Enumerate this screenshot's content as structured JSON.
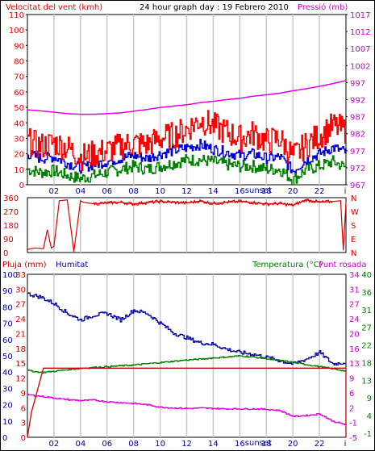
{
  "chart_data": [
    {
      "type": "line",
      "title": "24 hour graph day : 19 Febrero 2010",
      "left_axis_label": "Velocitat del vent (kmh)",
      "right_axis_label": "Pressió (mb)",
      "left_ticks": [
        "0",
        "10",
        "20",
        "30",
        "40",
        "50",
        "60",
        "70",
        "80",
        "90",
        "100",
        "110"
      ],
      "right_ticks": [
        "967",
        "972",
        "977",
        "982",
        "987",
        "992",
        "997",
        "1002",
        "1007",
        "1012",
        "1017"
      ],
      "ylim": [
        0,
        110
      ],
      "right_ylim": [
        967,
        1017
      ],
      "series": [
        {
          "name": "Pressió",
          "color": "#e000e0",
          "x": [
            0,
            1,
            2,
            3,
            4,
            5,
            6,
            7,
            8,
            9,
            10,
            11,
            12,
            13,
            14,
            15,
            16,
            17,
            18,
            19,
            20,
            21,
            22,
            23,
            24
          ],
          "values": [
            989.0,
            988.7,
            988.3,
            987.9,
            987.7,
            987.7,
            987.9,
            988.1,
            988.6,
            989.1,
            989.7,
            990.1,
            990.5,
            991.1,
            991.5,
            992.0,
            992.4,
            993.0,
            993.4,
            993.9,
            994.6,
            995.2,
            995.9,
            996.7,
            997.6
          ]
        },
        {
          "name": "gust",
          "color": "#ff0000",
          "x": [
            0,
            1,
            2,
            3,
            4,
            5,
            6,
            7,
            8,
            9,
            10,
            11,
            12,
            13,
            14,
            15,
            16,
            17,
            18,
            19,
            20,
            21,
            22,
            23,
            24
          ],
          "values": [
            28,
            25,
            27,
            24,
            18,
            20,
            22,
            25,
            27,
            26,
            30,
            32,
            36,
            42,
            38,
            34,
            30,
            33,
            28,
            30,
            18,
            26,
            32,
            38,
            35
          ]
        },
        {
          "name": "average",
          "color": "#0000e0",
          "x": [
            0,
            1,
            2,
            3,
            4,
            5,
            6,
            7,
            8,
            9,
            10,
            11,
            12,
            13,
            14,
            15,
            16,
            17,
            18,
            19,
            20,
            21,
            22,
            23,
            24
          ],
          "values": [
            20,
            17,
            18,
            14,
            11,
            13,
            15,
            17,
            19,
            17,
            20,
            22,
            24,
            26,
            23,
            21,
            19,
            20,
            17,
            18,
            9,
            16,
            20,
            24,
            21
          ]
        },
        {
          "name": "minimum",
          "color": "#008000",
          "x": [
            0,
            1,
            2,
            3,
            4,
            5,
            6,
            7,
            8,
            9,
            10,
            11,
            12,
            13,
            14,
            15,
            16,
            17,
            18,
            19,
            20,
            21,
            22,
            23,
            24
          ],
          "values": [
            10,
            8,
            9,
            6,
            4,
            6,
            8,
            10,
            12,
            10,
            12,
            14,
            16,
            16,
            15,
            13,
            12,
            12,
            10,
            10,
            3,
            10,
            12,
            15,
            11
          ]
        }
      ]
    },
    {
      "type": "line",
      "left_ticks": [
        "360",
        "270",
        "180",
        "90",
        "0"
      ],
      "right_ticks": [
        "N",
        "W",
        "S",
        "E",
        "N"
      ],
      "ylim": [
        0,
        360
      ],
      "series": [
        {
          "name": "wind direction",
          "color": "#e00000",
          "x": [
            0,
            0.6,
            1.2,
            1.5,
            1.8,
            2.0,
            2.4,
            3.0,
            3.5,
            4.0,
            4.2,
            5,
            6,
            7,
            8,
            9,
            10,
            11,
            12,
            13,
            14,
            15,
            16,
            17,
            18,
            19,
            20,
            21,
            22,
            23,
            23.6,
            23.8,
            24
          ],
          "values": [
            20,
            30,
            25,
            150,
            30,
            40,
            340,
            345,
            5,
            340,
            330,
            320,
            325,
            330,
            318,
            328,
            335,
            330,
            325,
            338,
            322,
            330,
            335,
            328,
            318,
            322,
            310,
            345,
            330,
            335,
            340,
            15,
            330
          ]
        }
      ]
    },
    {
      "type": "line",
      "labels_left": [
        "Pluja (mm)",
        "Humitat"
      ],
      "labels_right": [
        "Temperatura (°C)",
        "Punt rosada"
      ],
      "left_ticks_outer": [
        "0",
        "10",
        "20",
        "30",
        "40",
        "50",
        "60",
        "70",
        "80",
        "90",
        "100"
      ],
      "left_ticks_inner": [
        "0",
        "3",
        "6",
        "9",
        "12",
        "15",
        "18",
        "21",
        "24",
        "27",
        "30",
        "33"
      ],
      "right_ticks_inner": [
        "-5",
        "-1",
        "2",
        "6",
        "9",
        "13",
        "16",
        "20",
        "24",
        "27",
        "31",
        "34"
      ],
      "right_ticks_outer": [
        "-1",
        "4",
        "9",
        "13",
        "18",
        "22",
        "27",
        "31",
        "36",
        "40"
      ],
      "x_ticks": [
        "02",
        "04",
        "06",
        "08",
        "10",
        "12",
        "14",
        "16",
        "18",
        "20",
        "22"
      ],
      "x_special": "sunset",
      "series": [
        {
          "name": "Humitat",
          "color": "#0000a0",
          "x": [
            0,
            1,
            2,
            3,
            4,
            5,
            6,
            7,
            8,
            9,
            10,
            11,
            12,
            13,
            14,
            15,
            16,
            17,
            18,
            19,
            20,
            21,
            22,
            23,
            24
          ],
          "values": [
            88,
            86,
            82,
            76,
            72,
            75,
            76,
            72,
            78,
            76,
            70,
            64,
            61,
            58,
            57,
            54,
            52,
            51,
            49,
            47,
            45,
            48,
            52,
            45,
            46
          ]
        },
        {
          "name": "Temperatura",
          "color": "#008000",
          "x": [
            0,
            1,
            2,
            3,
            4,
            5,
            6,
            7,
            8,
            9,
            10,
            11,
            12,
            13,
            14,
            15,
            16,
            17,
            18,
            19,
            20,
            21,
            22,
            23,
            24
          ],
          "values": [
            11.0,
            10.5,
            10.8,
            11.2,
            11.5,
            11.7,
            11.9,
            12.1,
            12.3,
            12.6,
            12.9,
            13.2,
            13.5,
            13.7,
            14.0,
            14.2,
            14.5,
            14.2,
            13.8,
            13.4,
            12.9,
            12.4,
            11.9,
            11.4,
            10.8
          ]
        },
        {
          "name": "Punt rosada",
          "color": "#e000e0",
          "x": [
            0,
            1,
            2,
            3,
            4,
            5,
            6,
            7,
            8,
            9,
            10,
            11,
            12,
            13,
            14,
            15,
            16,
            17,
            18,
            19,
            20,
            21,
            22,
            23,
            24
          ],
          "values": [
            5.2,
            4.8,
            4.4,
            4.0,
            3.8,
            3.9,
            3.5,
            3.3,
            3.1,
            2.8,
            2.2,
            2.0,
            1.9,
            2.0,
            1.9,
            1.8,
            1.8,
            1.8,
            1.7,
            1.4,
            0.0,
            0.2,
            0.6,
            -1.2,
            -2.0
          ]
        },
        {
          "name": "Pluja",
          "color": "#cc0000",
          "x": [
            0,
            0.3,
            0.8,
            1.2,
            24
          ],
          "values": [
            0,
            5,
            10,
            14,
            14
          ]
        }
      ]
    }
  ]
}
